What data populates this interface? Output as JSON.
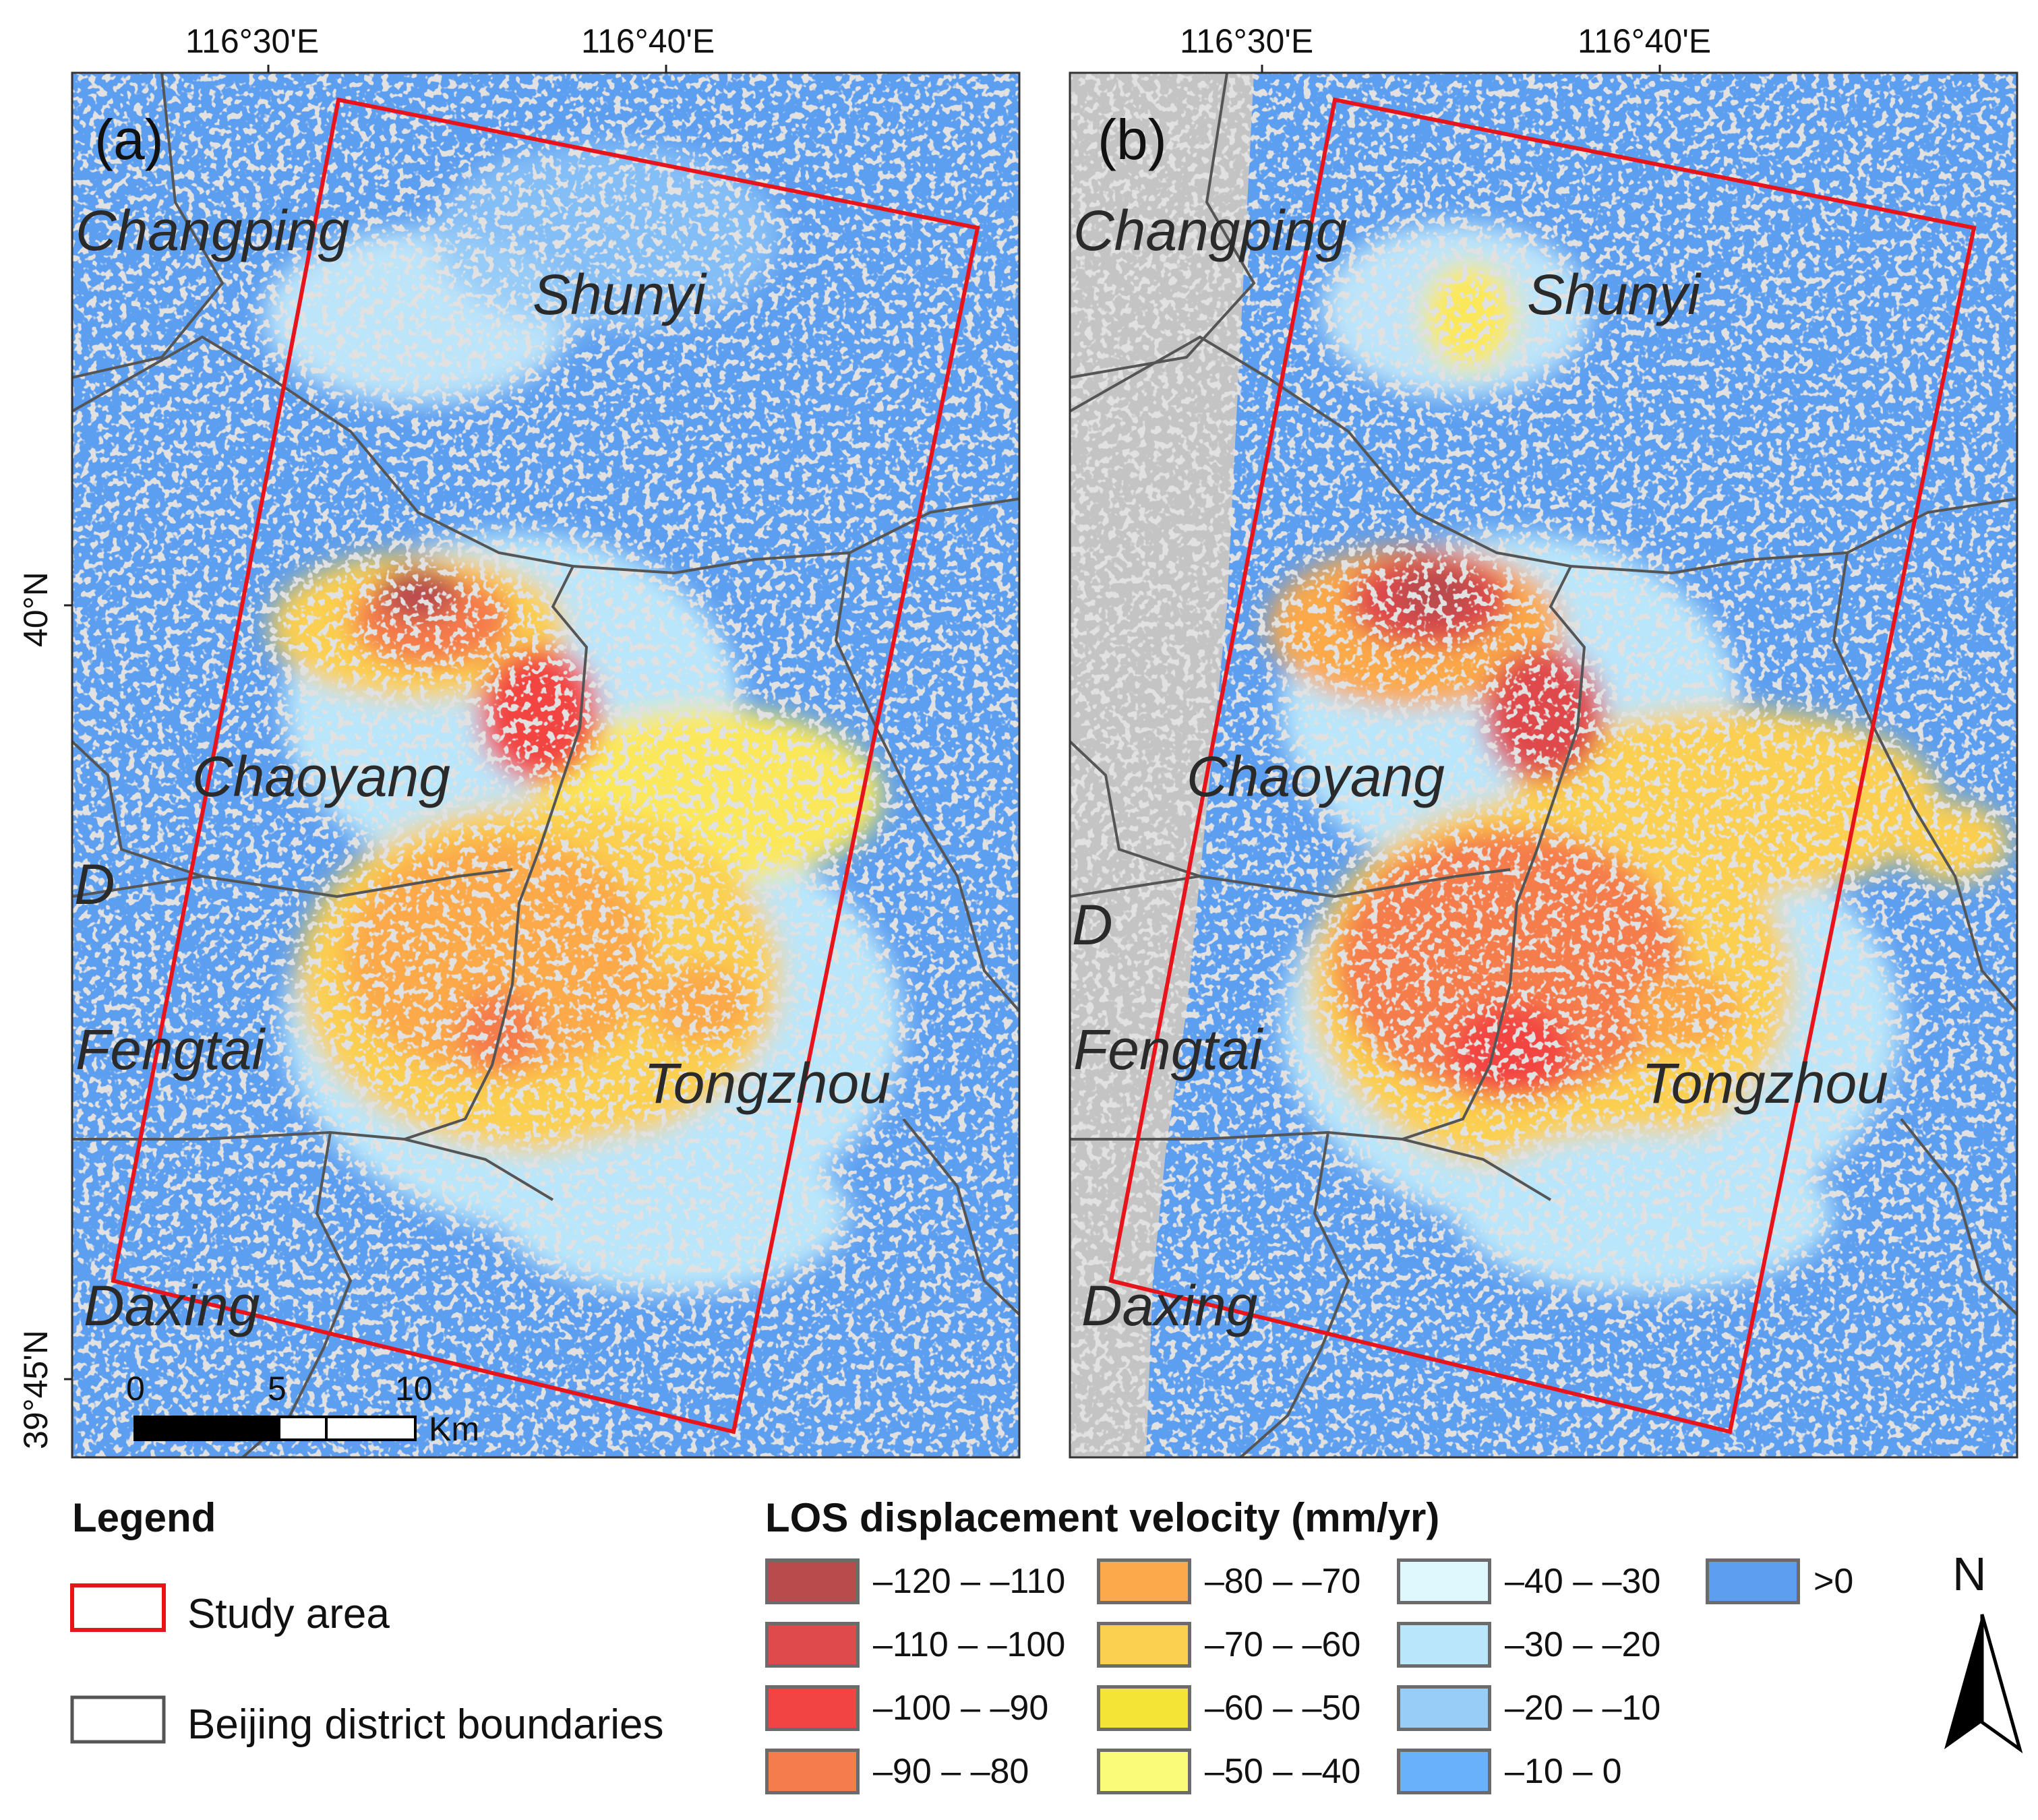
{
  "panels": [
    {
      "label": "(a)"
    },
    {
      "label": "(b)"
    }
  ],
  "axes": {
    "lon_ticks": [
      "116°30'E",
      "116°40'E"
    ],
    "lat_ticks": [
      "40°N",
      "39°45'N"
    ]
  },
  "districts": [
    "Changping",
    "Shunyi",
    "Chaoyang",
    "D",
    "Fengtai",
    "Tongzhou",
    "Daxing"
  ],
  "scale_bar": {
    "ticks": [
      "0",
      "5",
      "10"
    ],
    "unit": "Km"
  },
  "legend": {
    "title": "Legend",
    "items": [
      {
        "label": "Study area",
        "color": "#e8141c"
      },
      {
        "label": "Beijing district boundaries",
        "color": "#555555"
      }
    ]
  },
  "velocity_legend": {
    "title": "LOS displacement velocity (mm/yr)",
    "classes": [
      {
        "label": "–120 – –110",
        "color": "#b94b4d"
      },
      {
        "label": "–110 – –100",
        "color": "#df4a4c"
      },
      {
        "label": "–100 – –90",
        "color": "#f24443"
      },
      {
        "label": "–90 – –80",
        "color": "#f57c4c"
      },
      {
        "label": "–80 – –70",
        "color": "#fba94a"
      },
      {
        "label": "–70 – –60",
        "color": "#fbcf4f"
      },
      {
        "label": "–60 – –50",
        "color": "#f4e436"
      },
      {
        "label": "–50 – –40",
        "color": "#fbfb7a"
      },
      {
        "label": "–40 – –30",
        "color": "#def8fd"
      },
      {
        "label": "–30 – –20",
        "color": "#b9e6fb"
      },
      {
        "label": "–20 – –10",
        "color": "#98cdf8"
      },
      {
        "label": "–10 – 0",
        "color": "#6ab1fb"
      },
      {
        "label": ">0",
        "color": "#5e9ef0"
      }
    ]
  },
  "north_arrow": {
    "label": "N"
  }
}
